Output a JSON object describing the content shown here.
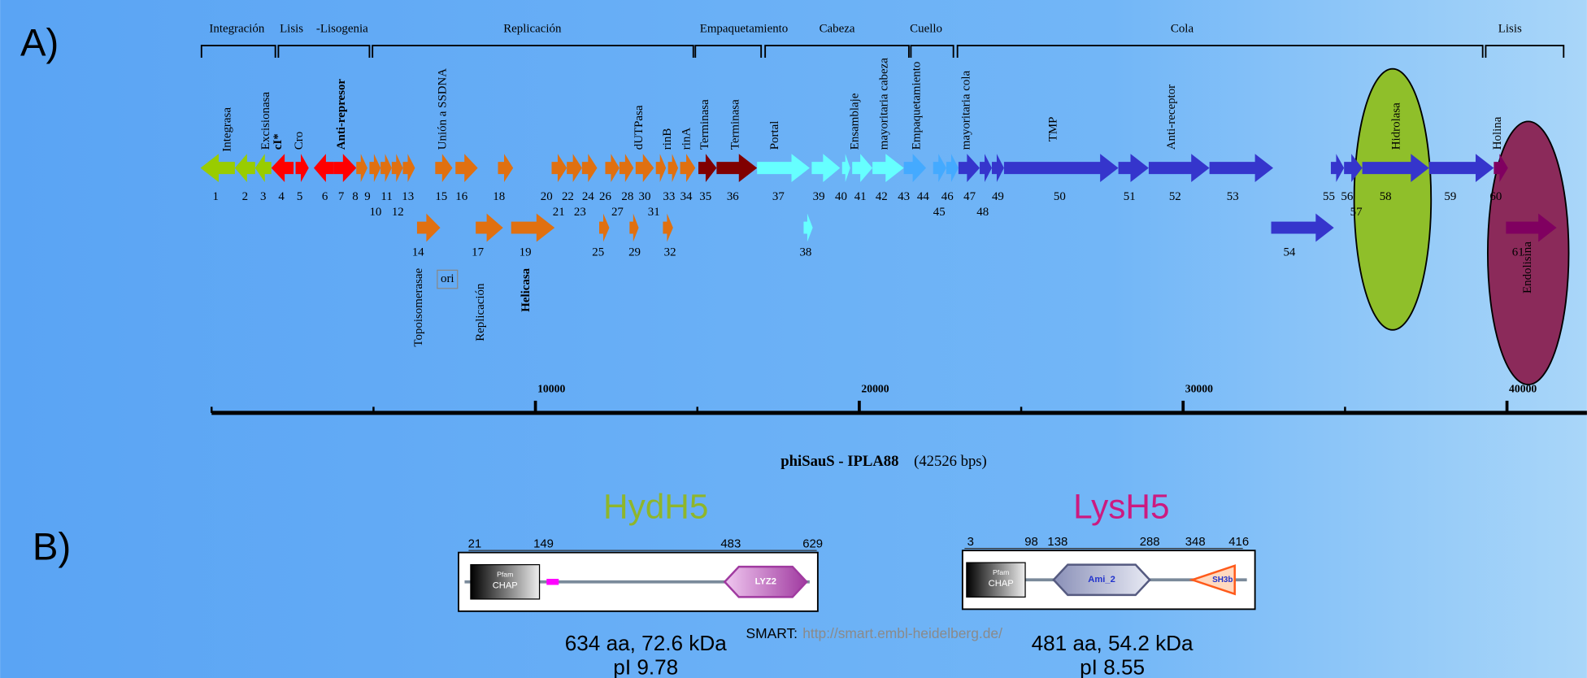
{
  "panel_labels": [
    "A)",
    "B)"
  ],
  "modules": [
    "Integración",
    "Lisis",
    "-Lisogenia",
    "Replicación",
    "Empaquetamiento",
    "Cabeza",
    "Cuello",
    "Cola",
    "Lisis"
  ],
  "gene_functions": [
    "Integrasa",
    "Excisionasa",
    "cI*",
    "Cro",
    "Anti-represor",
    "Unión a SSDNA",
    "dUTPasa",
    "rinB",
    "rinA",
    "Terminasa",
    "Terminasa",
    "Portal",
    "Ensamblaje",
    "mayoritaria cabeza",
    "Empaquetamiento",
    "mayoritaria cola",
    "TMP",
    "Anti-receptor",
    "Hidrolasa",
    "Holina",
    "Endolisina"
  ],
  "gene_numbers": {
    "row1": [
      1,
      2,
      3,
      4,
      5,
      6,
      7,
      8,
      9,
      11,
      13,
      15,
      16,
      18,
      20,
      22,
      24,
      26,
      28,
      30,
      33,
      34,
      35,
      36,
      37,
      39,
      40,
      41,
      42,
      43,
      44,
      46,
      47,
      49,
      50,
      51,
      52,
      53,
      55,
      56,
      58,
      59,
      60
    ],
    "row2": [
      10,
      12,
      21,
      23,
      27,
      31,
      45,
      48,
      57
    ],
    "row3": [
      14,
      17,
      19,
      25,
      29,
      32,
      38,
      54,
      61
    ]
  },
  "annotations": {
    "topoisomerase": "Topoisomerasae",
    "ori": "ori",
    "replication": "Replicación",
    "helicase": "Helicasa"
  },
  "scale": {
    "ticks": [
      10000,
      20000,
      30000,
      40000
    ]
  },
  "genome": {
    "name": "phiSauS - IPLA88",
    "size": "(42526 bps)"
  },
  "proteins": [
    {
      "name": "HydH5",
      "positions": [
        21,
        149,
        483,
        629
      ],
      "domains": [
        "CHAP",
        "LYZ2"
      ],
      "domain_source": "Pfam",
      "summary": "634 aa, 72.6 kDa",
      "pi": "pI 9.78"
    },
    {
      "name": "LysH5",
      "positions": [
        3,
        98,
        138,
        288,
        348,
        416
      ],
      "domains": [
        "CHAP",
        "Ami_2",
        "SH3b"
      ],
      "domain_source": "Pfam",
      "summary": "481 aa, 54.2 kDa",
      "pi": "pI 8.55"
    }
  ],
  "smart": {
    "label": "SMART:",
    "url": "http://smart.embl-heidelberg.de/"
  }
}
